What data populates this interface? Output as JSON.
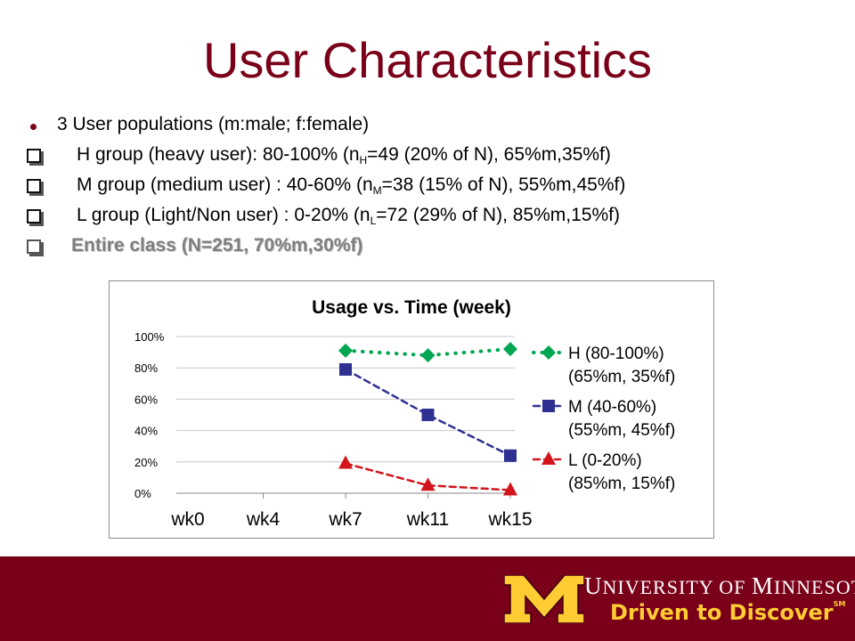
{
  "slide": {
    "title": "User Characteristics"
  },
  "bullets": {
    "intro": "3 User populations (m:male; f:female)",
    "h": {
      "pre": "H group   (heavy user): 80-100% (n",
      "sub": "H",
      "post": "=49 (20% of N), 65%m,35%f)"
    },
    "m": {
      "pre": "M group (medium user) :  40-60% (n",
      "sub": "M",
      "post": "=38 (15% of N), 55%m,45%f)"
    },
    "l": {
      "pre": "L group (Light/Non user) : 0-20%  (n",
      "sub": "L",
      "post": "=72 (29% of N), 85%m,15%f)"
    },
    "entire": "Entire class (N=251, 70%m,30%f)"
  },
  "chart_data": {
    "type": "line",
    "title": "Usage vs. Time (week)",
    "categories": [
      "wk0",
      "wk4",
      "wk7",
      "wk11",
      "wk15"
    ],
    "ylim": [
      0,
      100
    ],
    "yticks": [
      "0%",
      "20%",
      "40%",
      "60%",
      "80%",
      "100%"
    ],
    "grid": true,
    "legend_position": "right",
    "series": [
      {
        "name": "H (80-100%)",
        "name2": "(65%m, 35%f)",
        "values": [
          null,
          null,
          91,
          88,
          92
        ],
        "color": "#00a651",
        "marker": "diamond",
        "dash": "dotted"
      },
      {
        "name": "M (40-60%)",
        "name2": "(55%m, 45%f)",
        "values": [
          null,
          null,
          79,
          50,
          24
        ],
        "color": "#2e3192",
        "marker": "square",
        "dash": "dashed"
      },
      {
        "name": "L (0-20%)",
        "name2": "(85%m, 15%f)",
        "values": [
          null,
          null,
          19,
          5,
          2
        ],
        "color": "#d2151c",
        "marker": "triangle",
        "dash": "dashed"
      }
    ]
  },
  "footer": {
    "university_u": "U",
    "university_rest": "NIVERSITY OF ",
    "university_m": "M",
    "university_end": "INNESOTA",
    "tagline": "Driven to Discover",
    "sm": "SM",
    "colors": {
      "maroon": "#7a0019",
      "gold": "#ffcc33"
    }
  }
}
